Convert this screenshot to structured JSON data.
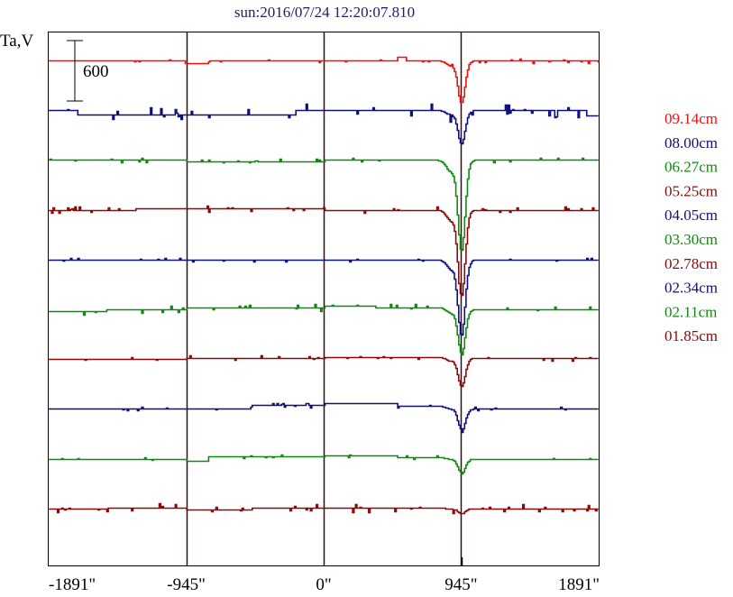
{
  "chart_data": {
    "type": "line",
    "title": "sun:2016/07/24 12:20:07.810",
    "ylabel": "Ta,V",
    "scale_bar_label": "600",
    "scale_bar_value": 600,
    "xlim": [
      -1891,
      1891
    ],
    "x_ticks": [
      {
        "value": -1891,
        "label": "-1891\""
      },
      {
        "value": -945,
        "label": "-945\""
      },
      {
        "value": 0,
        "label": "0\""
      },
      {
        "value": 945,
        "label": "945\""
      },
      {
        "value": 1891,
        "label": "1891\""
      }
    ],
    "vertical_lines": [
      -945,
      0,
      945
    ],
    "grid": false,
    "legend_position": "right",
    "series": [
      {
        "name": "09.14cm",
        "color": "#ee1111",
        "dip_depth": 420,
        "noise": 25,
        "steps": [
          [
            -1891,
            0
          ],
          [
            -960,
            -25
          ],
          [
            -800,
            0
          ],
          [
            500,
            40
          ],
          [
            560,
            0
          ]
        ]
      },
      {
        "name": "08.00cm",
        "color": "#10107a",
        "dip_depth": 330,
        "noise": 70,
        "steps": [
          [
            -1891,
            0
          ],
          [
            -1700,
            -40
          ],
          [
            -945,
            -45
          ],
          [
            -200,
            0
          ],
          [
            1200,
            0
          ],
          [
            1800,
            -50
          ]
        ]
      },
      {
        "name": "06.27cm",
        "color": "#118811",
        "dip_depth": 900,
        "noise": 25,
        "steps": [
          [
            -1891,
            0
          ],
          [
            -945,
            -10
          ],
          [
            0,
            0
          ]
        ]
      },
      {
        "name": "05.25cm",
        "color": "#8a0a0a",
        "dip_depth": 850,
        "noise": 35,
        "steps": [
          [
            -1891,
            0
          ],
          [
            -1300,
            15
          ],
          [
            -800,
            10
          ],
          [
            0,
            0
          ]
        ]
      },
      {
        "name": "04.05cm",
        "color": "#10107a",
        "dip_depth": 750,
        "noise": 20,
        "steps": [
          [
            -1891,
            0
          ],
          [
            -945,
            -5
          ],
          [
            0,
            0
          ]
        ]
      },
      {
        "name": "03.30cm",
        "color": "#118811",
        "dip_depth": 450,
        "noise": 35,
        "steps": [
          [
            -1891,
            -20
          ],
          [
            -1500,
            0
          ],
          [
            -945,
            20
          ],
          [
            0,
            40
          ],
          [
            350,
            20
          ],
          [
            945,
            0
          ],
          [
            1300,
            0
          ]
        ]
      },
      {
        "name": "02.78cm",
        "color": "#8a0a0a",
        "dip_depth": 280,
        "noise": 25,
        "steps": [
          [
            -1891,
            0
          ],
          [
            -945,
            15
          ],
          [
            0,
            20
          ],
          [
            945,
            10
          ]
        ]
      },
      {
        "name": "02.34cm",
        "color": "#10107a",
        "dip_depth": 230,
        "noise": 25,
        "steps": [
          [
            -1891,
            0
          ],
          [
            -1200,
            0
          ],
          [
            -500,
            40
          ],
          [
            0,
            60
          ],
          [
            500,
            30
          ],
          [
            945,
            0
          ]
        ]
      },
      {
        "name": "02.11cm",
        "color": "#118811",
        "dip_depth": 150,
        "noise": 20,
        "steps": [
          [
            -1891,
            0
          ],
          [
            -945,
            -20
          ],
          [
            -800,
            20
          ],
          [
            0,
            30
          ],
          [
            500,
            15
          ],
          [
            945,
            0
          ]
        ]
      },
      {
        "name": "01.85cm",
        "color": "#8a0a0a",
        "dip_depth": 50,
        "noise": 45,
        "steps": [
          [
            -1891,
            0
          ],
          [
            -1500,
            10
          ],
          [
            -945,
            -15
          ],
          [
            -500,
            10
          ],
          [
            0,
            5
          ],
          [
            945,
            0
          ]
        ]
      }
    ]
  }
}
